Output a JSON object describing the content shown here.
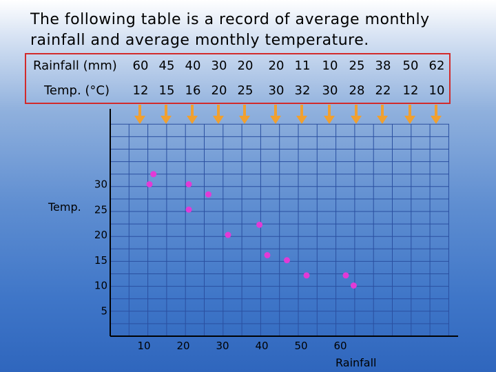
{
  "title": "The following table is a record of average monthly rainfall and average monthly temperature.",
  "table": {
    "rainfall_label": "Rainfall (mm)",
    "temp_label": "Temp. (°C)",
    "rainfall": [
      "60",
      "45",
      "40",
      "30",
      "20",
      "20",
      "11",
      "10",
      "25",
      "38",
      "50",
      "62"
    ],
    "temp": [
      "12",
      "15",
      "16",
      "20",
      "25",
      "30",
      "32",
      "30",
      "28",
      "22",
      "12",
      "10"
    ]
  },
  "colors": {
    "table_border": "#d22a2a",
    "arrow": "#f0a030",
    "point": "#e23ad6",
    "grid": "#2a4fa0",
    "axis": "#000000"
  },
  "chart_data": {
    "type": "scatter",
    "xlabel": "Rainfall",
    "ylabel": "Temp.",
    "x_ticks": [
      10,
      20,
      30,
      40,
      50,
      60
    ],
    "y_ticks": [
      5,
      10,
      15,
      20,
      25,
      30
    ],
    "grid": true,
    "points": [
      {
        "x": 10,
        "y": 30
      },
      {
        "x": 11,
        "y": 32
      },
      {
        "x": 20,
        "y": 30
      },
      {
        "x": 20,
        "y": 25
      },
      {
        "x": 25,
        "y": 28
      },
      {
        "x": 30,
        "y": 20
      },
      {
        "x": 38,
        "y": 22
      },
      {
        "x": 40,
        "y": 16
      },
      {
        "x": 45,
        "y": 15
      },
      {
        "x": 50,
        "y": 12
      },
      {
        "x": 60,
        "y": 12
      },
      {
        "x": 62,
        "y": 10
      }
    ]
  }
}
